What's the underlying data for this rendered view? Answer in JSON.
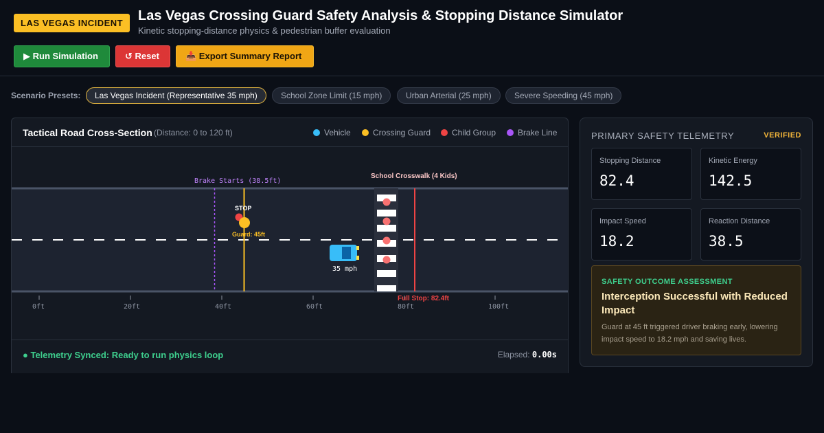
{
  "header": {
    "badge": "LAS VEGAS INCIDENT",
    "title": "Las Vegas Crossing Guard Safety Analysis & Stopping Distance Simulator",
    "subtitle": "Kinetic stopping-distance physics & pedestrian buffer evaluation"
  },
  "toolbar": {
    "run_label": "▶ Run Simulation",
    "reset_label": "↺ Reset",
    "export_label": "📥 Export Summary Report"
  },
  "presets": {
    "label": "Scenario Presets:",
    "items": [
      "Las Vegas Incident (Representative 35 mph)",
      "School Zone Limit (15 mph)",
      "Urban Arterial (25 mph)",
      "Severe Speeding (45 mph)"
    ],
    "active_index": 0
  },
  "road_panel": {
    "title": "Tactical Road Cross-Section",
    "range": "(Distance: 0 to 120 ft)",
    "legend": [
      {
        "label": "Vehicle",
        "color": "#38bdf8"
      },
      {
        "label": "Crossing Guard",
        "color": "#fbbf24"
      },
      {
        "label": "Child Group",
        "color": "#ef4444"
      },
      {
        "label": "Brake Line",
        "color": "#a855f7"
      }
    ],
    "brake_label": "Brake Starts (38.5ft)",
    "crosswalk_label": "School Crosswalk (4 Kids)",
    "stop_sign_label": "STOP",
    "guard_label": "Guard: 45ft",
    "vehicle_speed_label": "35 mph",
    "full_stop_label": "Full Stop: 82.4ft",
    "ticks": [
      "0ft",
      "20ft",
      "40ft",
      "60ft",
      "80ft",
      "100ft"
    ],
    "status": "● Telemetry Synced: Ready to run physics loop",
    "elapsed_label": "Elapsed:",
    "elapsed_value": "0.00s"
  },
  "telemetry": {
    "title": "PRIMARY SAFETY TELEMETRY",
    "verified": "VERIFIED",
    "metrics": [
      {
        "label": "Stopping Distance",
        "value": "82.4"
      },
      {
        "label": "Kinetic Energy",
        "value": "142.5"
      },
      {
        "label": "Impact Speed",
        "value": "18.2"
      },
      {
        "label": "Reaction Distance",
        "value": "38.5"
      }
    ],
    "outcome": {
      "label": "SAFETY OUTCOME ASSESSMENT",
      "title": "Interception Successful with Reduced Impact",
      "description": "Guard at 45 ft triggered driver braking early, lowering impact speed to 18.2 mph and saving lives."
    }
  },
  "colors": {
    "vehicle": "#38bdf8",
    "guard": "#fbbf24",
    "child": "#ef4444",
    "brake": "#a855f7",
    "stop": "#ef4444",
    "status_ok": "#3ecf8e"
  }
}
